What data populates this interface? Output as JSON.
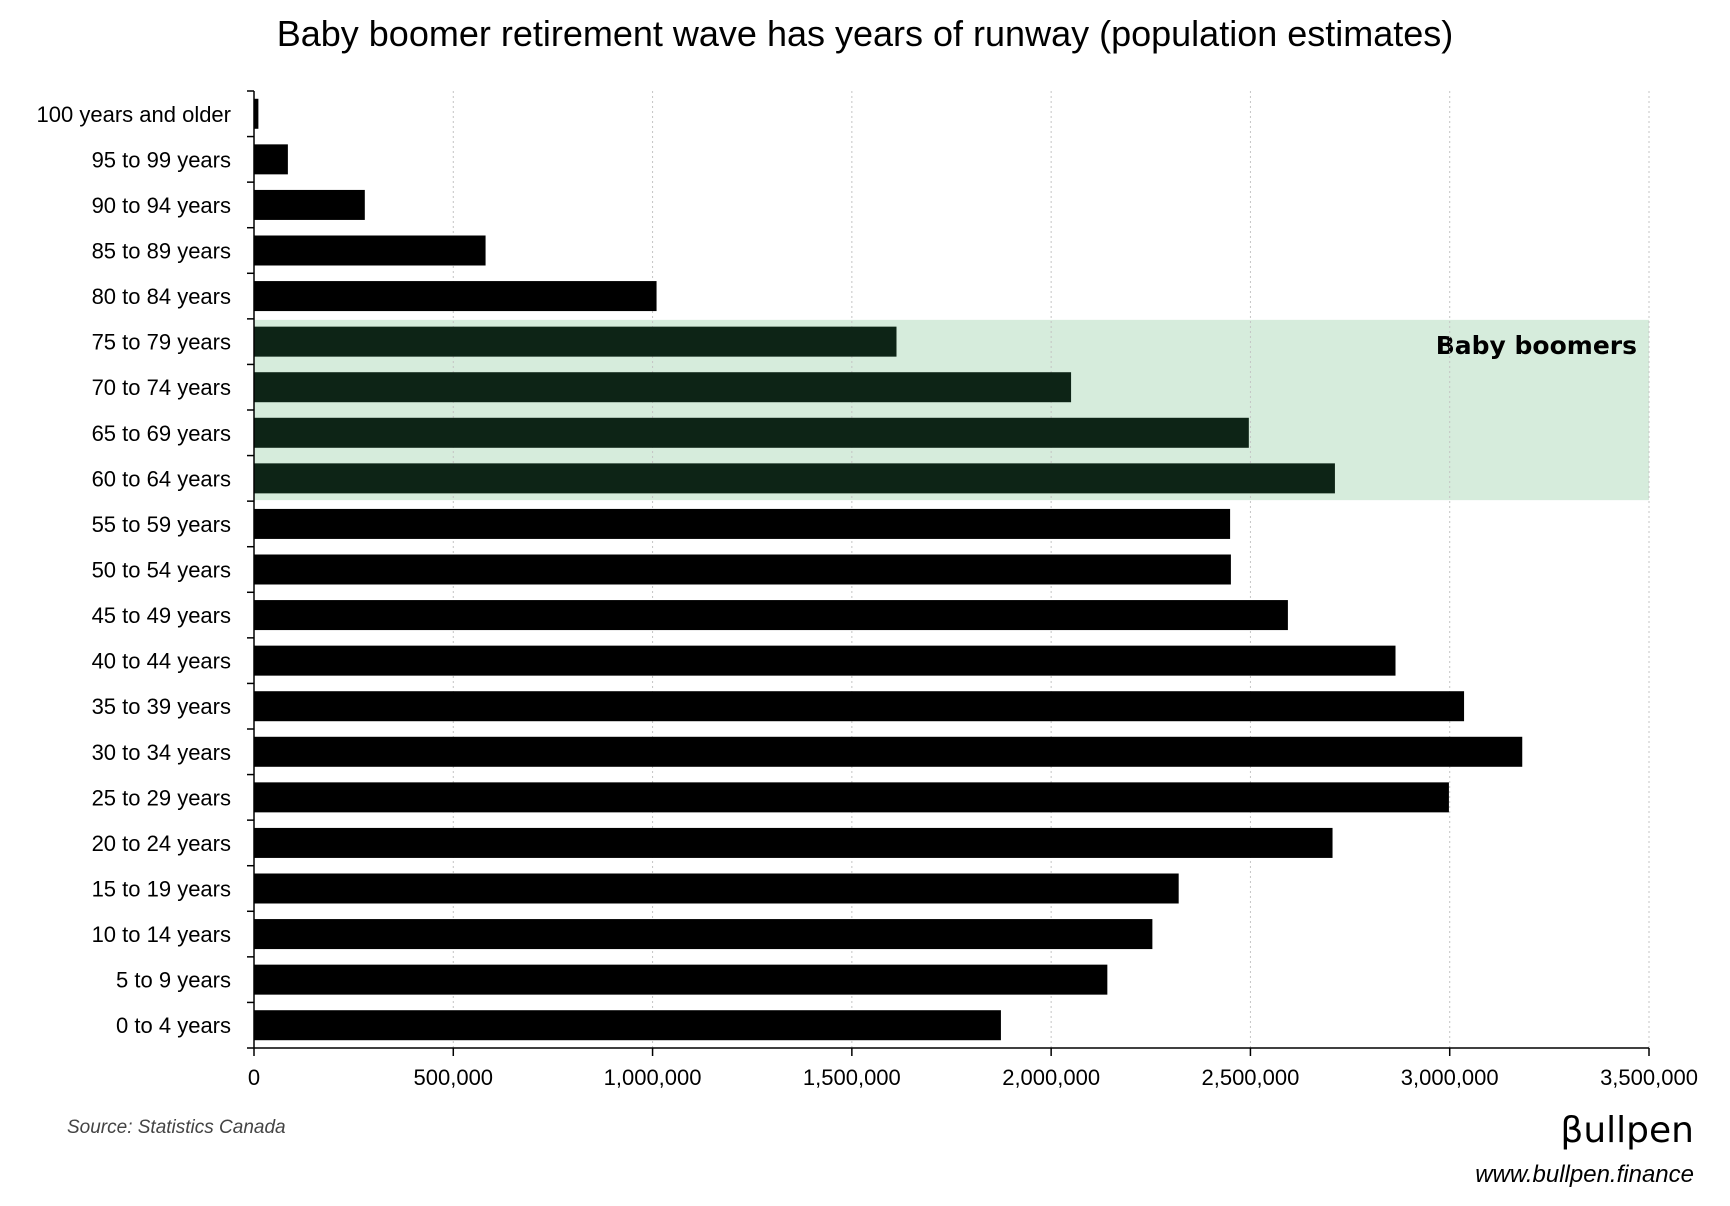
{
  "chart_data": {
    "type": "bar",
    "orientation": "horizontal",
    "title": "Baby boomer retirement wave has years of runway (population estimates)",
    "categories": [
      "100 years and older",
      "95 to 99 years",
      "90 to 94 years",
      "85 to 89 years",
      "80 to 84 years",
      "75 to 79 years",
      "70 to 74 years",
      "65 to 69 years",
      "60 to 64 years",
      "55 to 59 years",
      "50 to 54 years",
      "45 to 49 years",
      "40 to 44 years",
      "35 to 39 years",
      "30 to 34 years",
      "25 to 29 years",
      "20 to 24 years",
      "15 to 19 years",
      "10 to 14 years",
      "5 to 9 years",
      "0 to 4 years"
    ],
    "values": [
      11000,
      85000,
      278000,
      581000,
      1010000,
      1612000,
      2050000,
      2496000,
      2712000,
      2449000,
      2451000,
      2594000,
      2864000,
      3036000,
      3182000,
      2998000,
      2706000,
      2320000,
      2254000,
      2141000,
      1874000
    ],
    "xlim": [
      0,
      3500000
    ],
    "xticks": [
      "0",
      "500,000",
      "1,000,000",
      "1,500,000",
      "2,000,000",
      "2,500,000",
      "3,000,000",
      "3,500,000"
    ],
    "xtick_values": [
      0,
      500000,
      1000000,
      1500000,
      2000000,
      2500000,
      3000000,
      3500000
    ],
    "grid": "vertical dotted",
    "highlight": {
      "label": "Baby boomers",
      "categories": [
        "75 to 79 years",
        "70 to 74 years",
        "65 to 69 years",
        "60 to 64 years"
      ],
      "band_color": "#d6ecdc",
      "bar_color": "#0d2416"
    },
    "bar_color": "#000000"
  },
  "footer": {
    "source": "Source: Statistics Canada",
    "brand": "βullpen",
    "url": "www.bullpen.finance"
  }
}
